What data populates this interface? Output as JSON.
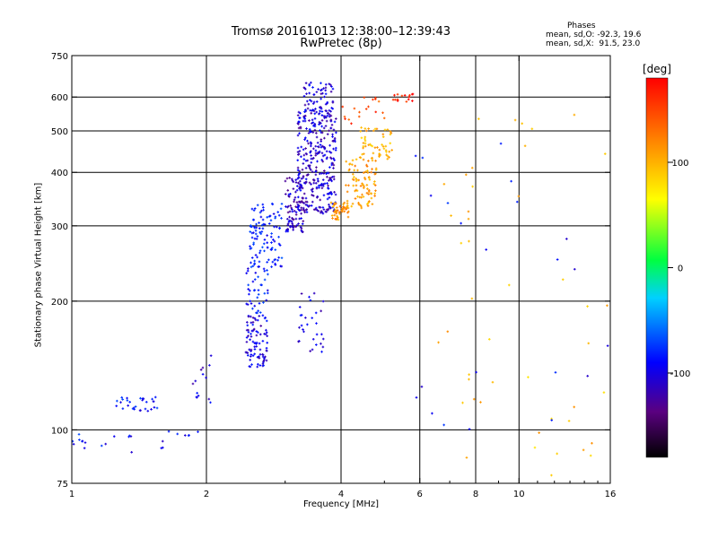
{
  "title": {
    "line1": "Tromsø 20161013 12:38:00–12:39:43",
    "line2": "RwPretec (8p)"
  },
  "stats": {
    "heading": "Phases",
    "o_line": "mean, sd,O: -92.3, 19.6",
    "x_line": "mean, sd,X:  91.5, 23.0"
  },
  "colorbar": {
    "unit": "[deg]",
    "ticks": [
      "100",
      "0",
      "-100"
    ],
    "tick_values": [
      100,
      0,
      -100
    ],
    "range": [
      -180,
      180
    ]
  },
  "chart_data": {
    "type": "scatter",
    "xlabel": "Frequency [MHz]",
    "ylabel": "Stationary phase Virtual Height [km]",
    "xscale": "log",
    "yscale": "log",
    "xlim": [
      1,
      16
    ],
    "ylim": [
      75,
      750
    ],
    "x_ticks": [
      1,
      2,
      4,
      6,
      8,
      10,
      16
    ],
    "x_tick_labels": [
      "1",
      "2",
      "4",
      "6",
      "8",
      "10",
      "16"
    ],
    "x_grid": [
      2,
      4,
      6,
      8,
      10
    ],
    "y_ticks": [
      75,
      100,
      200,
      300,
      400,
      500,
      600,
      750
    ],
    "y_tick_labels": [
      "75",
      "100",
      "200",
      "300",
      "400",
      "500",
      "600",
      "750"
    ],
    "y_grid": [
      100,
      200,
      300,
      400,
      500,
      600
    ],
    "grid": true,
    "clusters": [
      {
        "x": [
          1.0,
          1.1
        ],
        "y": [
          90,
          100
        ],
        "phase": -95,
        "n": 8
      },
      {
        "x": [
          1.15,
          1.6
        ],
        "y": [
          88,
          97
        ],
        "phase": -100,
        "n": 10
      },
      {
        "x": [
          1.25,
          1.6
        ],
        "y": [
          110,
          120
        ],
        "phase": -95,
        "n": 30
      },
      {
        "x": [
          1.6,
          1.95
        ],
        "y": [
          96,
          102
        ],
        "phase": -100,
        "n": 6
      },
      {
        "x": [
          1.85,
          2.05
        ],
        "y": [
          115,
          150
        ],
        "phase": -110,
        "n": 14
      },
      {
        "x": [
          2.45,
          2.75
        ],
        "y": [
          140,
          185
        ],
        "phase": -110,
        "n": 90
      },
      {
        "x": [
          2.45,
          2.75
        ],
        "y": [
          185,
          240
        ],
        "phase": -95,
        "n": 40
      },
      {
        "x": [
          2.5,
          2.95
        ],
        "y": [
          240,
          340
        ],
        "phase": -90,
        "n": 110
      },
      {
        "x": [
          3.0,
          3.3
        ],
        "y": [
          290,
          390
        ],
        "phase": -120,
        "n": 90
      },
      {
        "x": [
          3.2,
          3.9
        ],
        "y": [
          320,
          560
        ],
        "phase": -115,
        "n": 340
      },
      {
        "x": [
          3.3,
          3.85
        ],
        "y": [
          550,
          650
        ],
        "phase": -110,
        "n": 60
      },
      {
        "x": [
          3.2,
          3.7
        ],
        "y": [
          150,
          210
        ],
        "phase": -110,
        "n": 30
      },
      {
        "x": [
          3.8,
          4.2
        ],
        "y": [
          310,
          340
        ],
        "phase": 115,
        "n": 45
      },
      {
        "x": [
          4.1,
          4.8
        ],
        "y": [
          330,
          430
        ],
        "phase": 110,
        "n": 90
      },
      {
        "x": [
          4.4,
          5.2
        ],
        "y": [
          430,
          510
        ],
        "phase": 105,
        "n": 55
      },
      {
        "x": [
          3.9,
          5.0
        ],
        "y": [
          520,
          600
        ],
        "phase": 150,
        "n": 18
      },
      {
        "x": [
          5.2,
          5.8
        ],
        "y": [
          585,
          610
        ],
        "phase": 170,
        "n": 16
      },
      {
        "x": [
          6.5,
          16.0
        ],
        "y": [
          78,
          600
        ],
        "phase": 100,
        "n": 45
      },
      {
        "x": [
          5.5,
          16.0
        ],
        "y": [
          100,
          500
        ],
        "phase": -100,
        "n": 22
      }
    ]
  }
}
